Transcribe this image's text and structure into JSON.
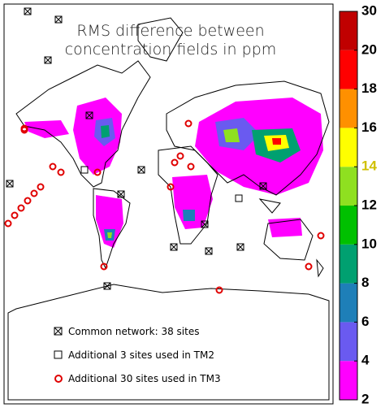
{
  "title": [
    "RMS difference between",
    "concentration fields in ppm"
  ],
  "legend": [
    "Common network: 38 sites",
    "Additional 3 sites used in TM2",
    "Additional 30 sites used in TM3"
  ],
  "colorbar": {
    "levels": [
      2,
      4,
      6,
      8,
      10,
      12,
      14,
      16,
      18,
      20,
      30
    ],
    "colors": [
      "#ff00ff",
      "#6a5af0",
      "#1e7fb8",
      "#00a070",
      "#00c000",
      "#8fe020",
      "#ffff00",
      "#ff9000",
      "#ff0000",
      "#c00000"
    ]
  }
}
